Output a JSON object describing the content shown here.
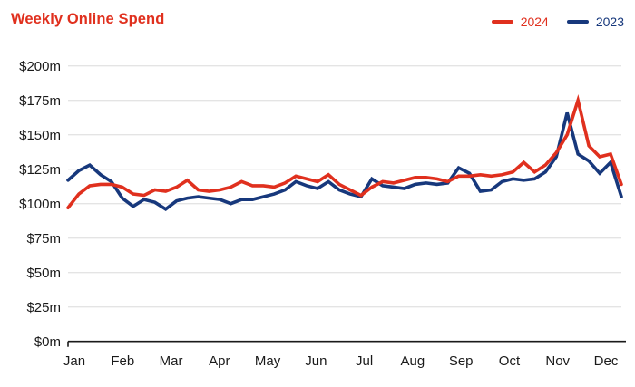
{
  "header": {
    "title": "Weekly Online Spend"
  },
  "legend": [
    {
      "label": "2024",
      "color": "#e0301e"
    },
    {
      "label": "2023",
      "color": "#17387c"
    }
  ],
  "colors": {
    "accent_red": "#e0301e",
    "accent_navy": "#17387c",
    "gridline": "#e4e4e4",
    "axis_line": "#1a1a1a",
    "tick_text": "#1a1a1a"
  },
  "chart_data": {
    "type": "line",
    "title": "Weekly Online Spend",
    "x_unit": "week",
    "points_per_series": 52,
    "x_tick_labels": [
      "Jan",
      "Feb",
      "Mar",
      "Apr",
      "May",
      "Jun",
      "Jul",
      "Aug",
      "Sep",
      "Oct",
      "Nov",
      "Dec"
    ],
    "y_tick_values": [
      0,
      25,
      50,
      75,
      100,
      125,
      150,
      175,
      200
    ],
    "y_tick_labels": [
      "$0m",
      "$25m",
      "$50m",
      "$75m",
      "$100m",
      "$125m",
      "$150m",
      "$175m",
      "$200m"
    ],
    "ylim": [
      0,
      200
    ],
    "grid": "horizontal",
    "legend_position": "top-right",
    "series": [
      {
        "name": "2024",
        "color": "#e0301e",
        "values": [
          97,
          107,
          113,
          114,
          114,
          112,
          107,
          106,
          110,
          109,
          112,
          117,
          110,
          109,
          110,
          112,
          116,
          113,
          113,
          112,
          115,
          120,
          118,
          116,
          121,
          114,
          110,
          106,
          112,
          116,
          115,
          117,
          119,
          119,
          118,
          116,
          120,
          120,
          121,
          120,
          121,
          123,
          130,
          123,
          128,
          137,
          150,
          175,
          142,
          134,
          136,
          114
        ]
      },
      {
        "name": "2023",
        "color": "#17387c",
        "values": [
          117,
          124,
          128,
          121,
          116,
          104,
          98,
          103,
          101,
          96,
          102,
          104,
          105,
          104,
          103,
          100,
          103,
          103,
          105,
          107,
          110,
          116,
          113,
          111,
          116,
          110,
          107,
          105,
          118,
          113,
          112,
          111,
          114,
          115,
          114,
          115,
          126,
          122,
          109,
          110,
          116,
          118,
          117,
          118,
          123,
          134,
          166,
          136,
          131,
          122,
          130,
          105
        ]
      }
    ]
  }
}
